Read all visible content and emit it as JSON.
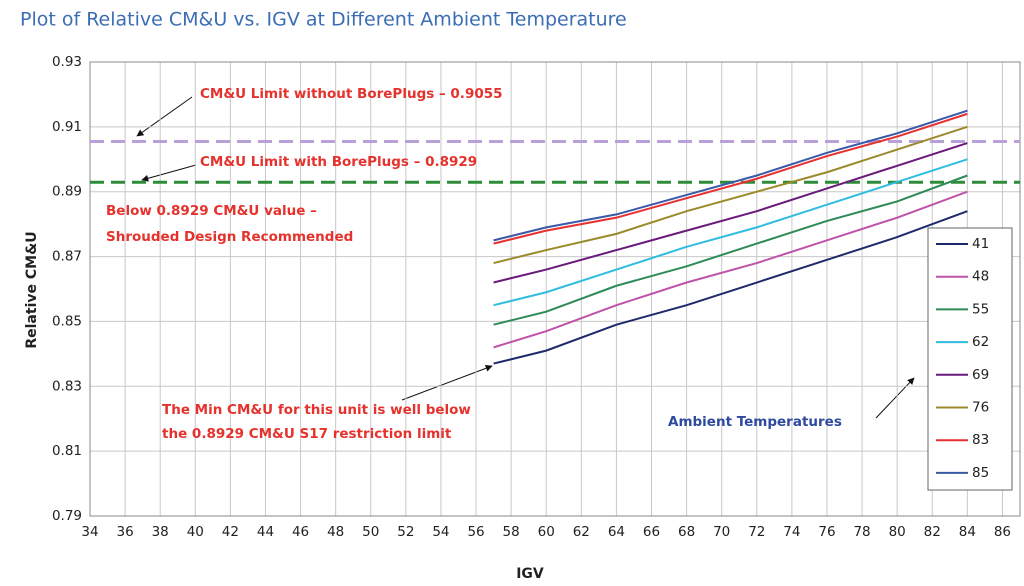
{
  "chart_data": {
    "type": "line",
    "title": "Plot of Relative CM&U vs. IGV at Different Ambient Temperature",
    "x_label": "IGV",
    "y_label": "Relative CM&U",
    "x": [
      57,
      60,
      64,
      68,
      72,
      76,
      80,
      84
    ],
    "series": [
      {
        "name": "41",
        "color": "#1f2a6b",
        "values": [
          0.837,
          0.841,
          0.849,
          0.855,
          0.862,
          0.869,
          0.876,
          0.884
        ]
      },
      {
        "name": "48",
        "color": "#c052a8",
        "values": [
          0.842,
          0.847,
          0.855,
          0.862,
          0.868,
          0.875,
          0.882,
          0.89
        ]
      },
      {
        "name": "55",
        "color": "#2e8b57",
        "values": [
          0.849,
          0.853,
          0.861,
          0.867,
          0.874,
          0.881,
          0.887,
          0.895
        ]
      },
      {
        "name": "62",
        "color": "#30bde0",
        "values": [
          0.855,
          0.859,
          0.866,
          0.873,
          0.879,
          0.886,
          0.893,
          0.9
        ]
      },
      {
        "name": "69",
        "color": "#6a1a7a",
        "values": [
          0.862,
          0.866,
          0.872,
          0.878,
          0.884,
          0.891,
          0.898,
          0.905
        ]
      },
      {
        "name": "76",
        "color": "#9a8a2a",
        "values": [
          0.868,
          0.872,
          0.877,
          0.884,
          0.89,
          0.896,
          0.903,
          0.91
        ]
      },
      {
        "name": "83",
        "color": "#e83030",
        "values": [
          0.874,
          0.878,
          0.882,
          0.888,
          0.894,
          0.901,
          0.907,
          0.914
        ]
      },
      {
        "name": "85",
        "color": "#3a5aa8",
        "values": [
          0.875,
          0.879,
          0.883,
          0.889,
          0.895,
          0.902,
          0.908,
          0.915
        ]
      }
    ],
    "reference_lines": [
      {
        "value": 0.9055,
        "color": "#b9a0d8"
      },
      {
        "value": 0.8929,
        "color": "#2e8b3a"
      }
    ],
    "annotations": [
      {
        "text": "CM&U Limit without BorePlugs – 0.9055",
        "color": "#e5322d"
      },
      {
        "text": "CM&U Limit with BorePlugs – 0.8929",
        "color": "#e5322d"
      },
      {
        "text": "Below 0.8929 CM&U value –",
        "color": "#e5322d"
      },
      {
        "text": "Shrouded Design Recommended",
        "color": "#e5322d"
      },
      {
        "text": "The Min CM&U for this unit is well below",
        "color": "#e5322d"
      },
      {
        "text": "the 0.8929 CM&U S17 restriction limit",
        "color": "#e5322d"
      },
      {
        "text": "Ambient Temperatures",
        "color": "#2e4a9e"
      }
    ],
    "xlim": [
      34,
      87
    ],
    "ylim": [
      0.79,
      0.93
    ],
    "xticks": [
      34,
      36,
      38,
      40,
      42,
      44,
      46,
      48,
      50,
      52,
      54,
      56,
      58,
      60,
      62,
      64,
      66,
      68,
      70,
      72,
      74,
      76,
      78,
      80,
      82,
      84,
      86
    ],
    "yticks": [
      0.79,
      0.81,
      0.83,
      0.85,
      0.87,
      0.89,
      0.91,
      0.93
    ],
    "grid": true,
    "legend": "right"
  }
}
